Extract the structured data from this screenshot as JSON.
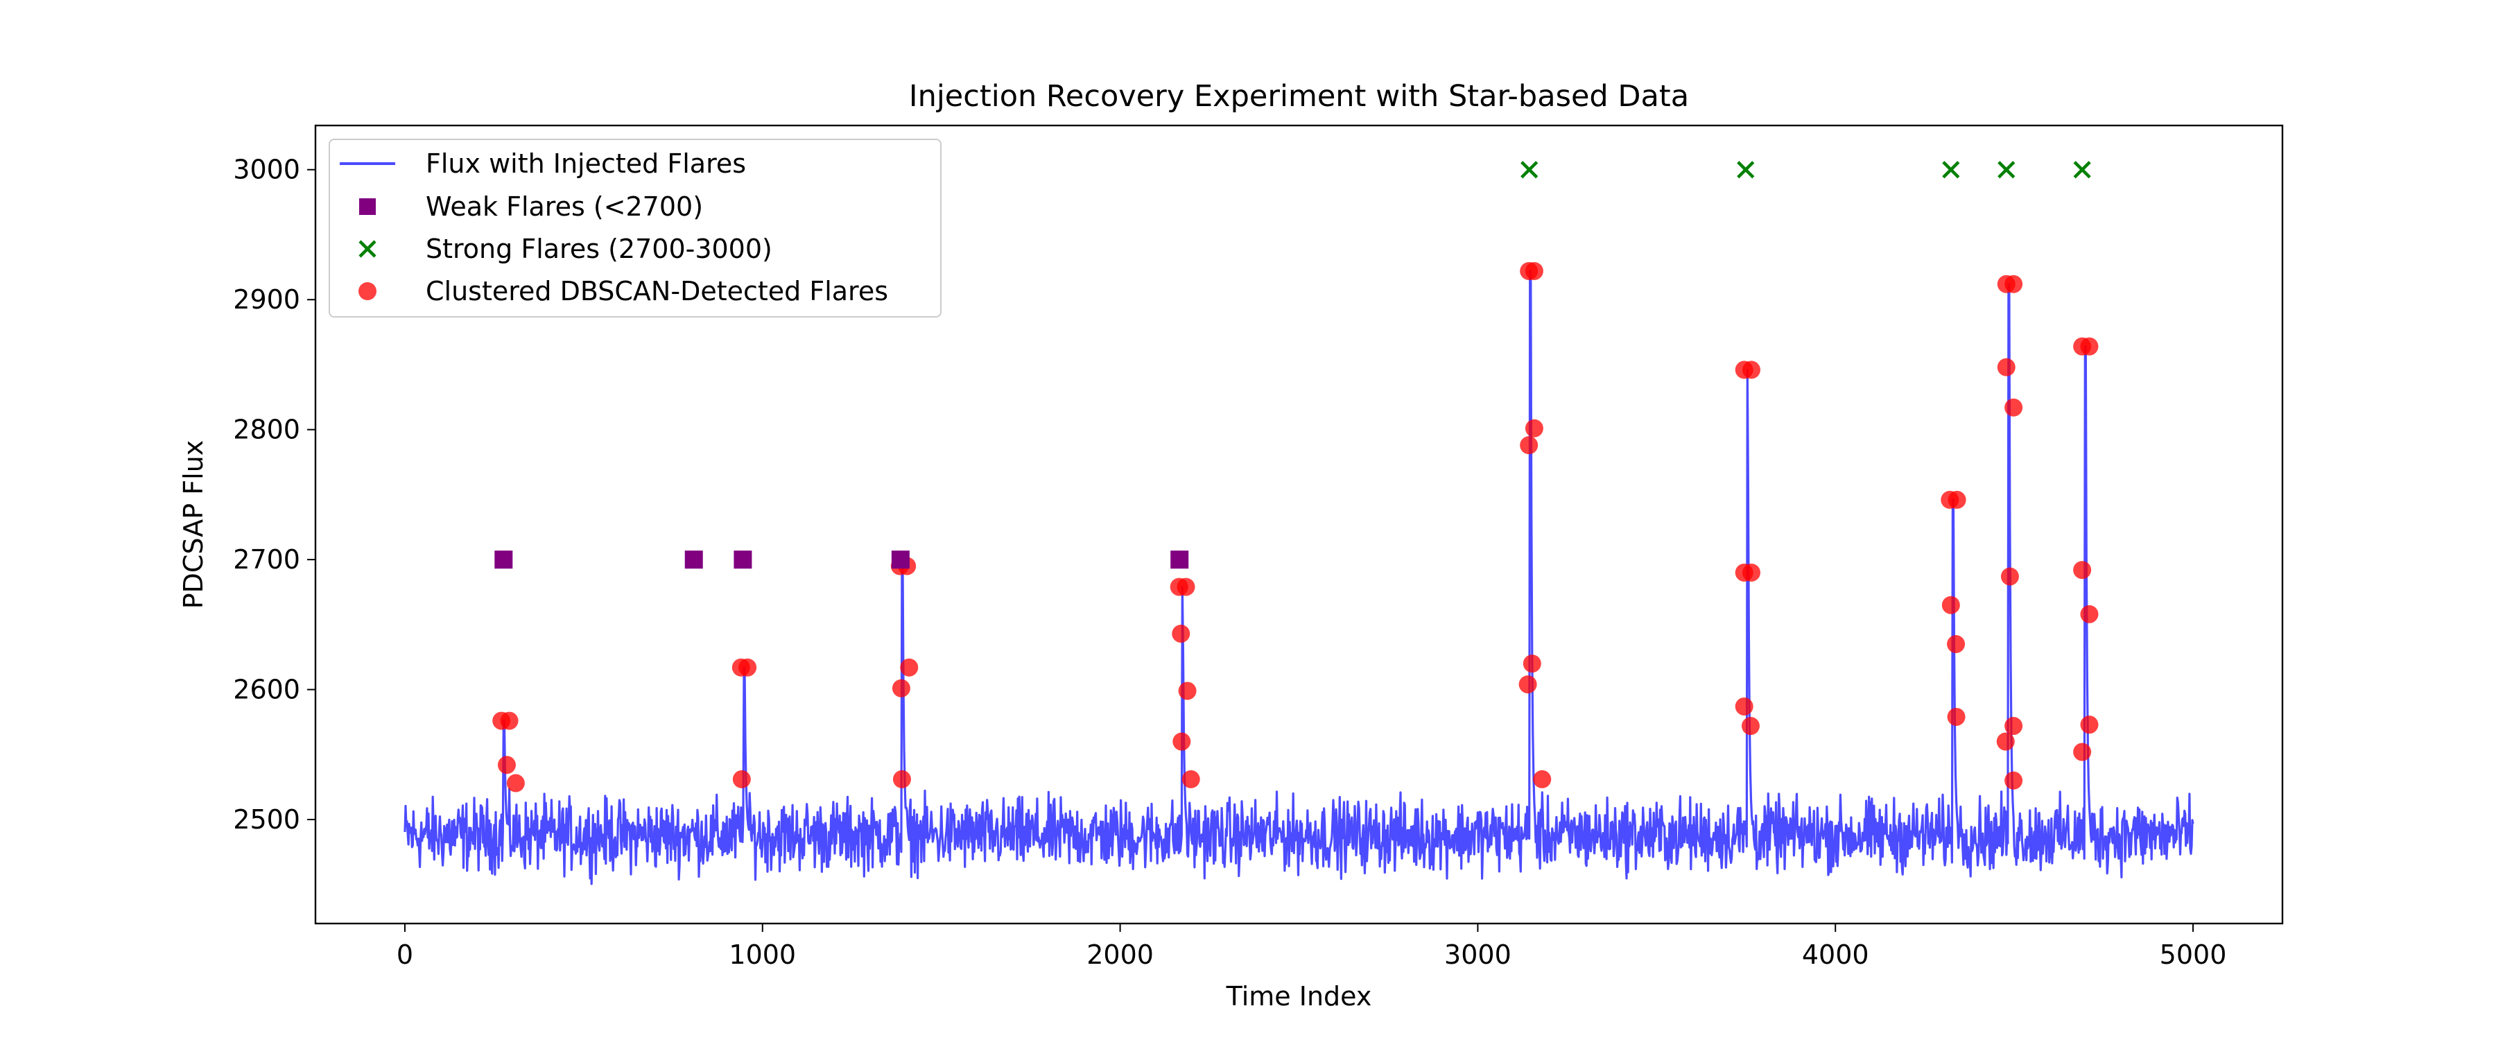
{
  "chart_data": {
    "type": "line",
    "title": "Injection Recovery Experiment with Star-based Data",
    "xlabel": "Time Index",
    "ylabel": "PDCSAP Flux",
    "xlim": [
      -250,
      5250
    ],
    "ylim": [
      2420,
      3034
    ],
    "x_ticks": [
      0,
      1000,
      2000,
      3000,
      4000,
      5000
    ],
    "x_tick_labels": [
      "0",
      "1000",
      "2000",
      "3000",
      "4000",
      "5000"
    ],
    "y_ticks": [
      2500,
      2600,
      2700,
      2800,
      2900,
      3000
    ],
    "y_tick_labels": [
      "2500",
      "2600",
      "2700",
      "2800",
      "2900",
      "3000"
    ],
    "grid": false,
    "legend_position": "top-left",
    "baseline": {
      "mean": 2488,
      "amplitude": 24,
      "x_start": 0,
      "x_end": 5000
    },
    "series": [
      {
        "name": "Flux with Injected Flares",
        "kind": "line",
        "color": "#4b4bff",
        "flares": [
          {
            "x": 278,
            "peak": 2576
          },
          {
            "x": 950,
            "peak": 2617
          },
          {
            "x": 1392,
            "peak": 2695
          },
          {
            "x": 2175,
            "peak": 2679
          },
          {
            "x": 3148,
            "peak": 2922
          },
          {
            "x": 3755,
            "peak": 2846
          },
          {
            "x": 4330,
            "peak": 2746
          },
          {
            "x": 4486,
            "peak": 2912
          },
          {
            "x": 4700,
            "peak": 2864
          }
        ]
      },
      {
        "name": "Weak Flares (<2700)",
        "kind": "scatter",
        "marker": "square",
        "color": "#800080",
        "x": [
          276,
          808,
          945,
          1386,
          2166
        ],
        "y": [
          2700,
          2700,
          2700,
          2700,
          2700
        ]
      },
      {
        "name": "Strong Flares (2700-3000)",
        "kind": "scatter",
        "marker": "x",
        "color": "#008000",
        "x": [
          3144,
          3749,
          4323,
          4478,
          4690
        ],
        "y": [
          3000,
          3000,
          3000,
          3000,
          3000
        ]
      },
      {
        "name": "Clustered DBSCAN-Detected Flares",
        "kind": "scatter",
        "marker": "circle",
        "color": "#ff0000",
        "x": [
          270,
          292,
          285,
          310,
          940,
          958,
          942,
          1384,
          1404,
          1388,
          1410,
          1390,
          2165,
          2184,
          2170,
          2188,
          2172,
          2198,
          3143,
          3158,
          3143,
          3158,
          3140,
          3152,
          3180,
          3745,
          3765,
          3745,
          3765,
          3745,
          3763,
          4320,
          4340,
          4323,
          4337,
          4338,
          4478,
          4498,
          4478,
          4498,
          4488,
          4476,
          4498,
          4498,
          4690,
          4710,
          4690,
          4710,
          4690,
          4710
        ],
        "y": [
          2576,
          2576,
          2542,
          2528,
          2617,
          2617,
          2531,
          2695,
          2695,
          2601,
          2617,
          2531,
          2679,
          2679,
          2643,
          2599,
          2560,
          2531,
          2922,
          2922,
          2788,
          2801,
          2604,
          2620,
          2531,
          2846,
          2846,
          2690,
          2690,
          2587,
          2572,
          2746,
          2746,
          2665,
          2635,
          2579,
          2912,
          2912,
          2848,
          2817,
          2687,
          2560,
          2572,
          2530,
          2864,
          2864,
          2692,
          2658,
          2552,
          2573
        ]
      }
    ]
  }
}
